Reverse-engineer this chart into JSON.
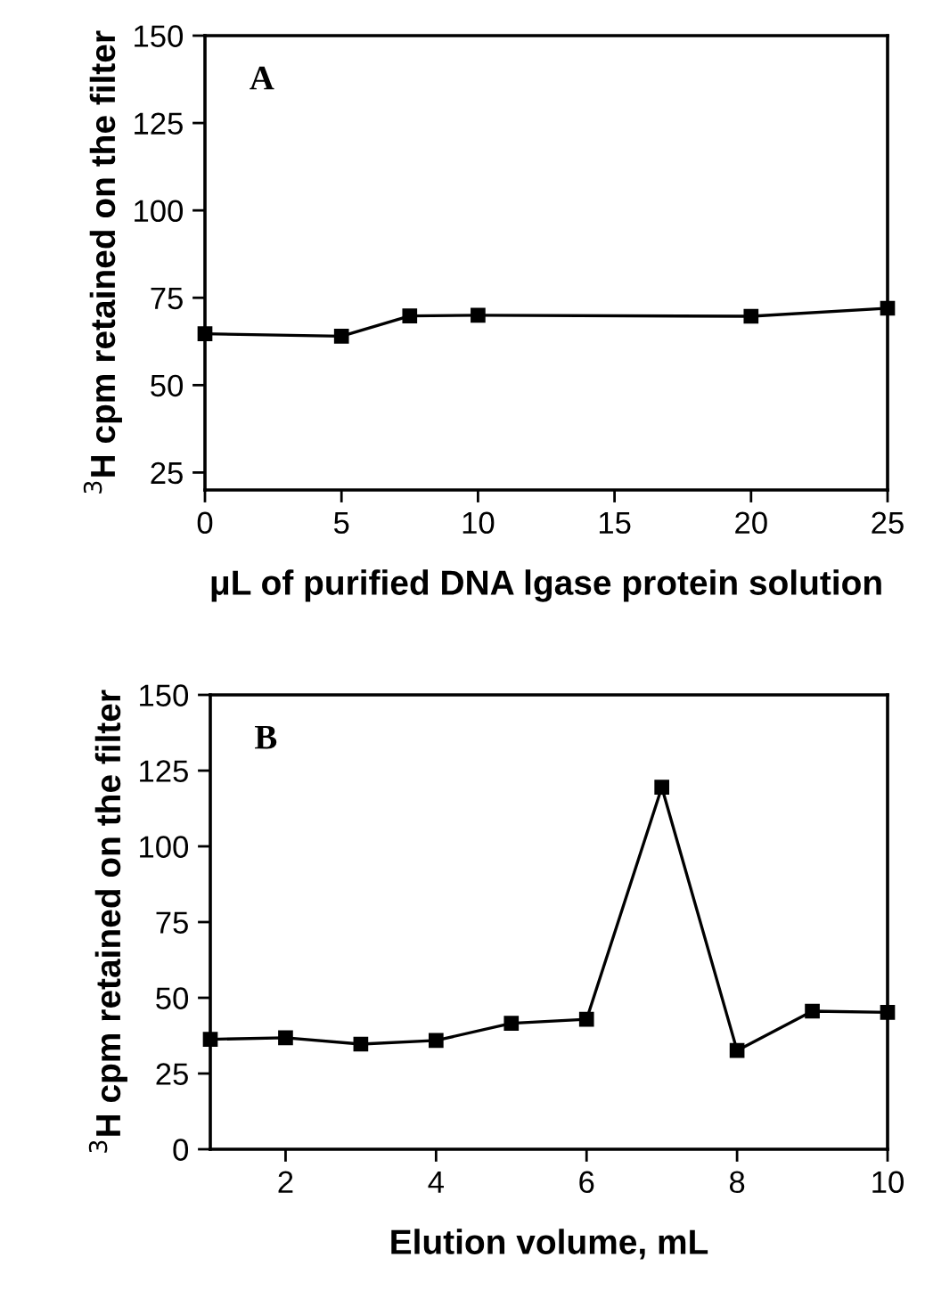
{
  "chart_data": [
    {
      "type": "line",
      "xlabel": "μL of purified DNA lgase protein solution",
      "ylabel": "$^{3}$H cpm retained on the filter",
      "annotations": [
        "A"
      ],
      "x": [
        0,
        5,
        7.5,
        10,
        20,
        25
      ],
      "series": [
        {
          "color": "#000000",
          "values": [
            64.7,
            64,
            69.8,
            70,
            69.7,
            72
          ]
        }
      ],
      "xlim": [
        0,
        25
      ],
      "xticks": [
        0,
        5,
        10,
        15,
        20,
        25
      ],
      "ylim": [
        20,
        150
      ],
      "yticks": [
        25,
        50,
        75,
        100,
        125,
        150
      ],
      "grid": false,
      "legend": false,
      "marker": "square",
      "line_style": "solid"
    },
    {
      "type": "line",
      "xlabel": "Elution volume, mL",
      "ylabel": "$^{3}$H cpm retained on the filter",
      "annotations": [
        "B"
      ],
      "x": [
        1,
        2,
        3,
        4,
        5,
        6,
        7,
        8,
        9,
        10
      ],
      "series": [
        {
          "color": "#000000",
          "values": [
            36.3,
            36.8,
            34.7,
            35.9,
            41.6,
            42.9,
            119.5,
            32.6,
            45.6,
            45.2
          ]
        }
      ],
      "xlim": [
        1,
        10
      ],
      "xticks": [
        2,
        4,
        6,
        8,
        10
      ],
      "ylim": [
        0,
        150
      ],
      "yticks": [
        0,
        25,
        50,
        75,
        100,
        125,
        150
      ],
      "grid": false,
      "legend": false,
      "marker": "square",
      "line_style": "solid"
    }
  ]
}
